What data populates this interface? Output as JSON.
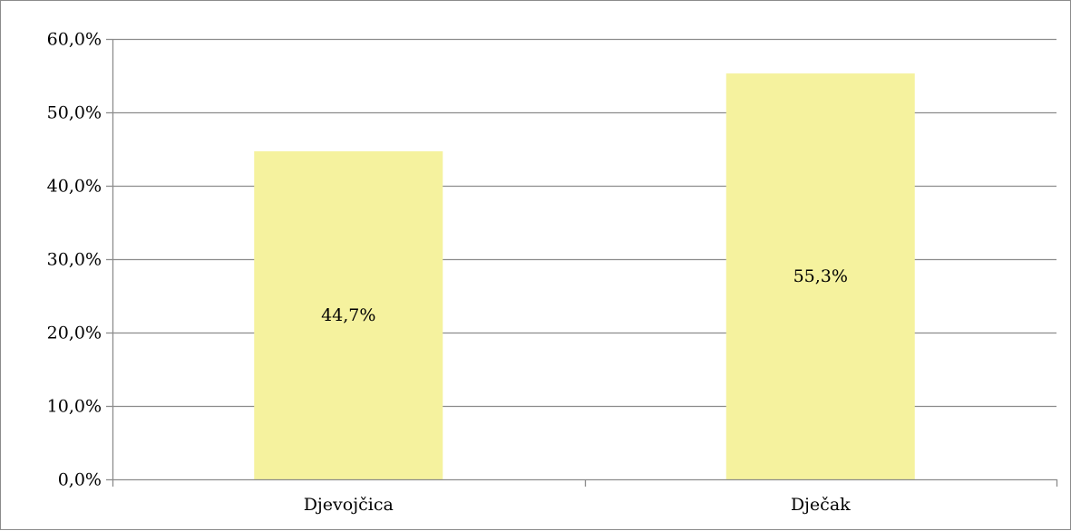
{
  "chart_data": {
    "type": "bar",
    "title": "",
    "xlabel": "",
    "ylabel": "",
    "categories": [
      "Djevojčica",
      "Dječak"
    ],
    "values": [
      44.7,
      55.3
    ],
    "data_labels": [
      "44,7%",
      "55,3%"
    ],
    "ylim": [
      0,
      60
    ],
    "y_ticks": [
      0,
      10,
      20,
      30,
      40,
      50,
      60
    ],
    "y_tick_labels": [
      "0,0%",
      "10,0%",
      "20,0%",
      "30,0%",
      "40,0%",
      "50,0%",
      "60,0%"
    ],
    "grid": true,
    "legend": "none",
    "colors": {
      "bar": "#f5f29e",
      "grid": "#8c8c8c",
      "axis": "#8c8c8c",
      "text": "#000000"
    }
  }
}
